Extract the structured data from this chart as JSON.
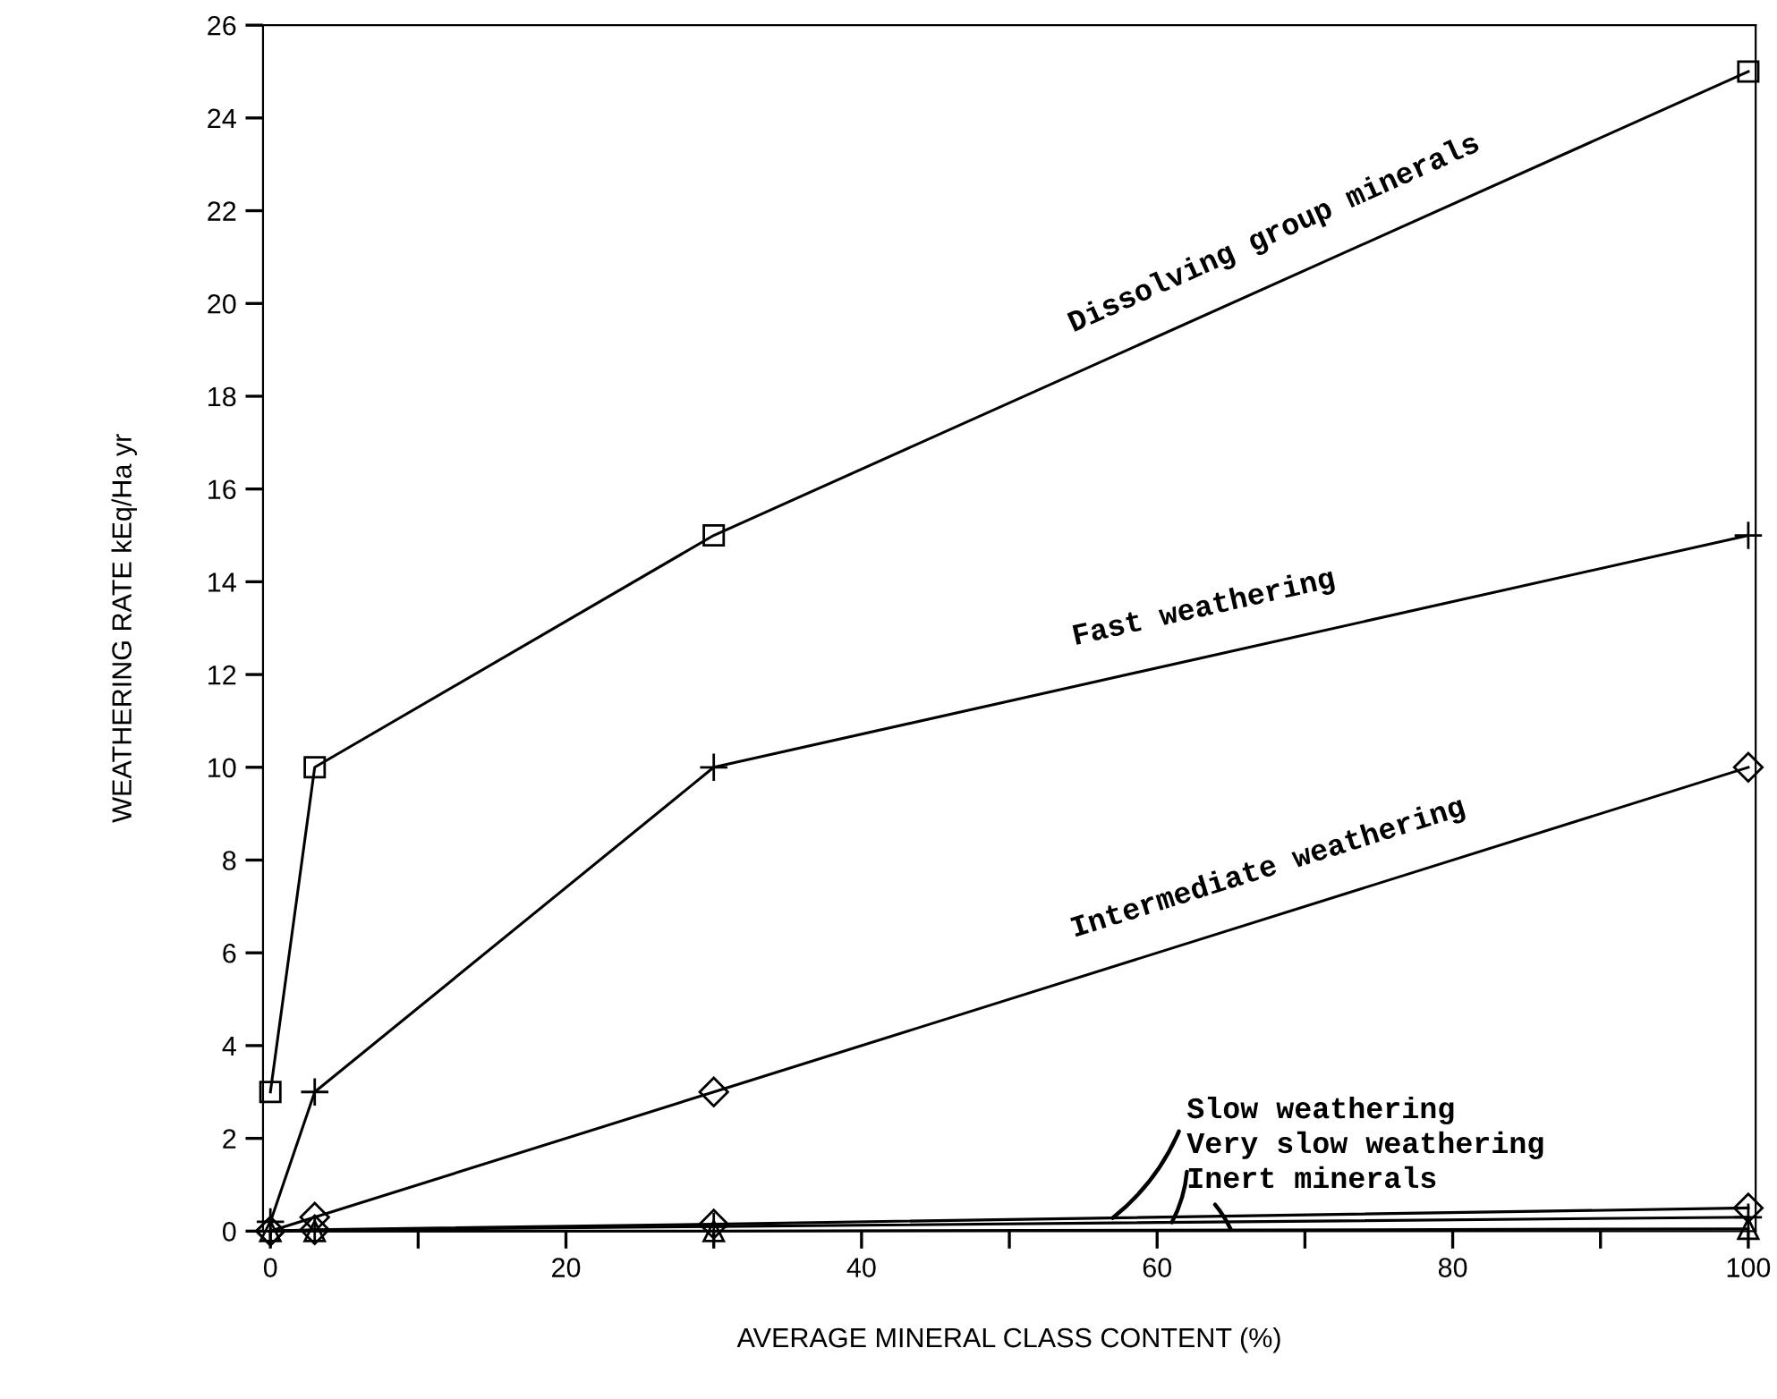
{
  "chart_data": {
    "type": "line",
    "xlabel": "AVERAGE MINERAL CLASS CONTENT (%)",
    "ylabel": "WEATHERING RATE kEq/Ha yr",
    "xlim": [
      -0.5,
      100.5
    ],
    "ylim": [
      0,
      26
    ],
    "xticks": [
      0,
      {
        "value": 10,
        "label": null
      },
      20,
      {
        "value": 30,
        "label": null
      },
      40,
      {
        "value": 50,
        "label": null
      },
      60,
      {
        "value": 70,
        "label": null
      },
      80,
      {
        "value": 90,
        "label": null
      },
      100
    ],
    "yticks": [
      0,
      2,
      4,
      6,
      8,
      10,
      12,
      14,
      16,
      18,
      20,
      22,
      24,
      26
    ],
    "grid": false,
    "series": [
      {
        "name": "Dissolving group minerals",
        "color": "#000000",
        "marker": "square",
        "x": [
          0,
          3,
          30,
          100
        ],
        "values": [
          3,
          10,
          15,
          25
        ]
      },
      {
        "name": "Fast weathering",
        "color": "#000000",
        "marker": "cross",
        "x": [
          0,
          3,
          30,
          100
        ],
        "values": [
          0.2,
          3,
          10,
          15
        ]
      },
      {
        "name": "Intermediate weathering",
        "color": "#000000",
        "marker": "diamond",
        "x": [
          0,
          3,
          30,
          100
        ],
        "values": [
          0,
          0.3,
          3,
          10
        ]
      },
      {
        "name": "Slow weathering",
        "color": "#000000",
        "marker": "diamond",
        "x": [
          0,
          3,
          30,
          100
        ],
        "values": [
          0,
          0.03,
          0.15,
          0.5
        ]
      },
      {
        "name": "Very slow weathering",
        "color": "#000000",
        "marker": "cross",
        "x": [
          0,
          3,
          30,
          100
        ],
        "values": [
          0,
          0.02,
          0.1,
          0.3
        ]
      },
      {
        "name": "Inert minerals",
        "color": "#000000",
        "marker": "triangle",
        "x": [
          0,
          3,
          30,
          100
        ],
        "values": [
          0,
          0,
          0,
          0.05
        ]
      }
    ]
  }
}
